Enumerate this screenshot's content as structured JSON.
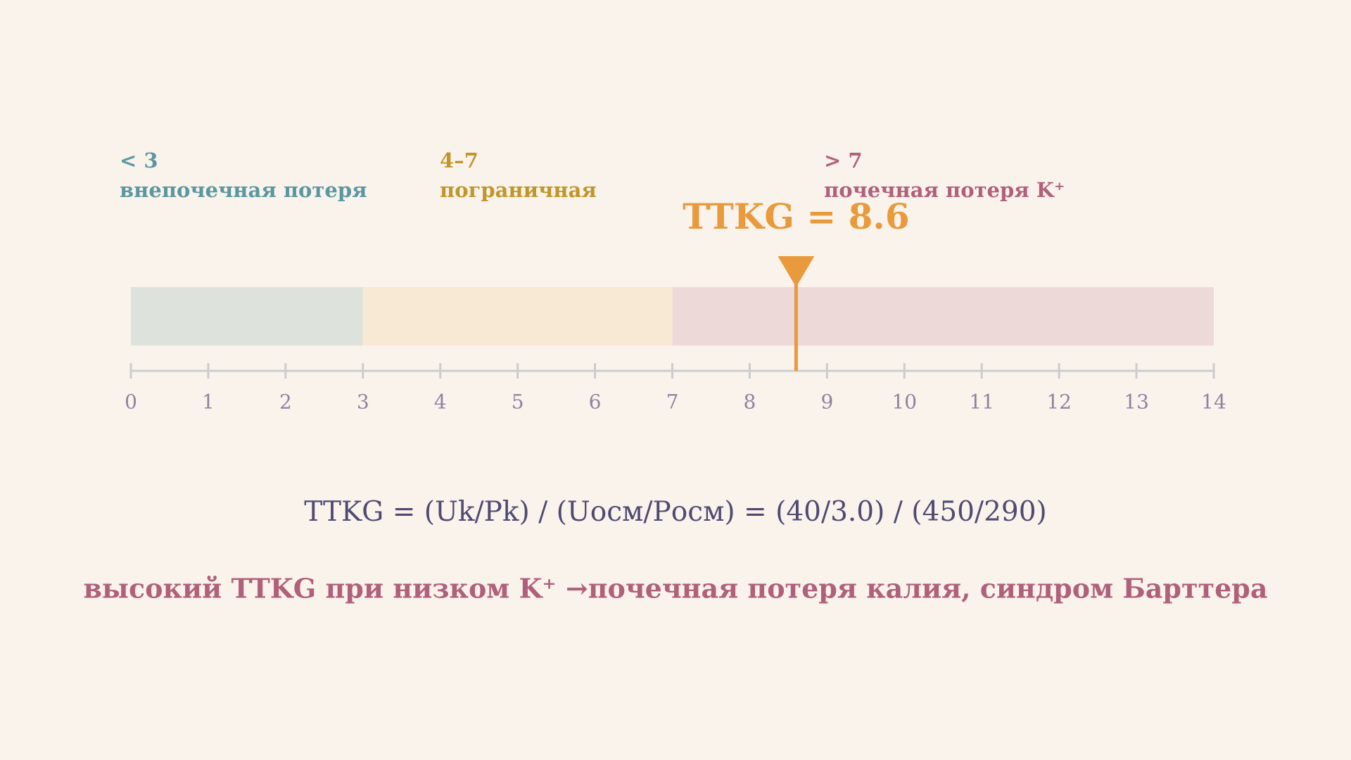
{
  "chart_data": {
    "type": "scale",
    "xlim": [
      0,
      14
    ],
    "xticks": [
      0,
      1,
      2,
      3,
      4,
      5,
      6,
      7,
      8,
      9,
      10,
      11,
      12,
      13,
      14
    ],
    "zones": [
      {
        "range": "< 3",
        "label": "внепочечная потеря",
        "from": 0,
        "to": 3,
        "color": "#dde2dc",
        "text_color": "#5b97a0"
      },
      {
        "range": "4–7",
        "label": "пограничная",
        "from": 3,
        "to": 7,
        "color": "#f7e9d4",
        "text_color": "#c0962a"
      },
      {
        "range": "> 7",
        "label": "почечная потеря K⁺",
        "from": 7,
        "to": 14,
        "color": "#eddad8",
        "text_color": "#b0607a"
      }
    ],
    "marker": {
      "value": 8.6,
      "label": "TTKG = 8.6",
      "color": "#e89a3c"
    },
    "formula": "TTKG = (Uk/Pk) / (Uосм/Pосм) = (40/3.0) / (450/290)",
    "note": "высокий TTKG при низком K⁺ →почечная потеря калия, синдром Барттера"
  }
}
